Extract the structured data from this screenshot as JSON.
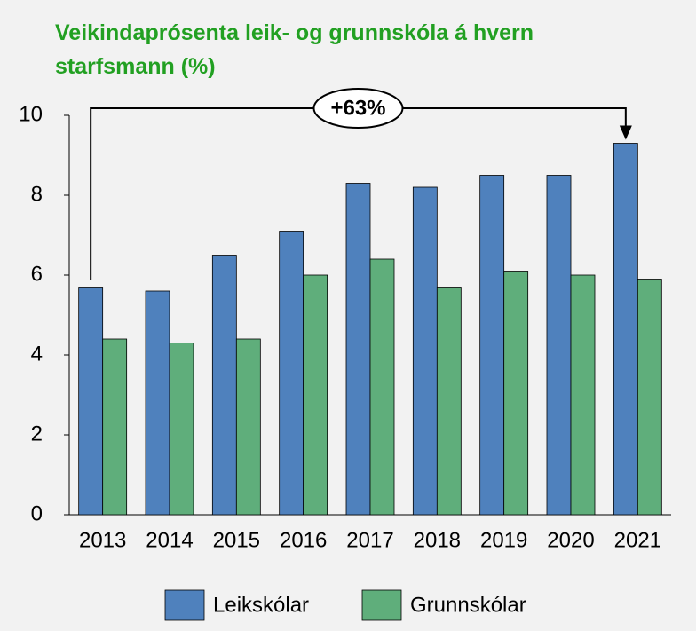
{
  "chart_data": {
    "type": "bar",
    "title": "Veikindaprósenta leik- og grunnskóla á hvern starfsmann (%)",
    "annotation": "+63%",
    "categories": [
      "2013",
      "2014",
      "2015",
      "2016",
      "2017",
      "2018",
      "2019",
      "2020",
      "2021"
    ],
    "series": [
      {
        "name": "Leikskólar",
        "color": "#4f81bd",
        "values": [
          5.7,
          5.6,
          6.5,
          7.1,
          8.3,
          8.2,
          8.5,
          8.5,
          9.3
        ]
      },
      {
        "name": "Grunnskólar",
        "color": "#5fae7b",
        "values": [
          4.4,
          4.3,
          4.4,
          6.0,
          6.4,
          5.7,
          6.1,
          6.0,
          5.9
        ]
      }
    ],
    "ylim": [
      0,
      10
    ],
    "yticks": [
      0,
      2,
      4,
      6,
      8,
      10
    ],
    "grid": false,
    "legend": "bottom"
  }
}
